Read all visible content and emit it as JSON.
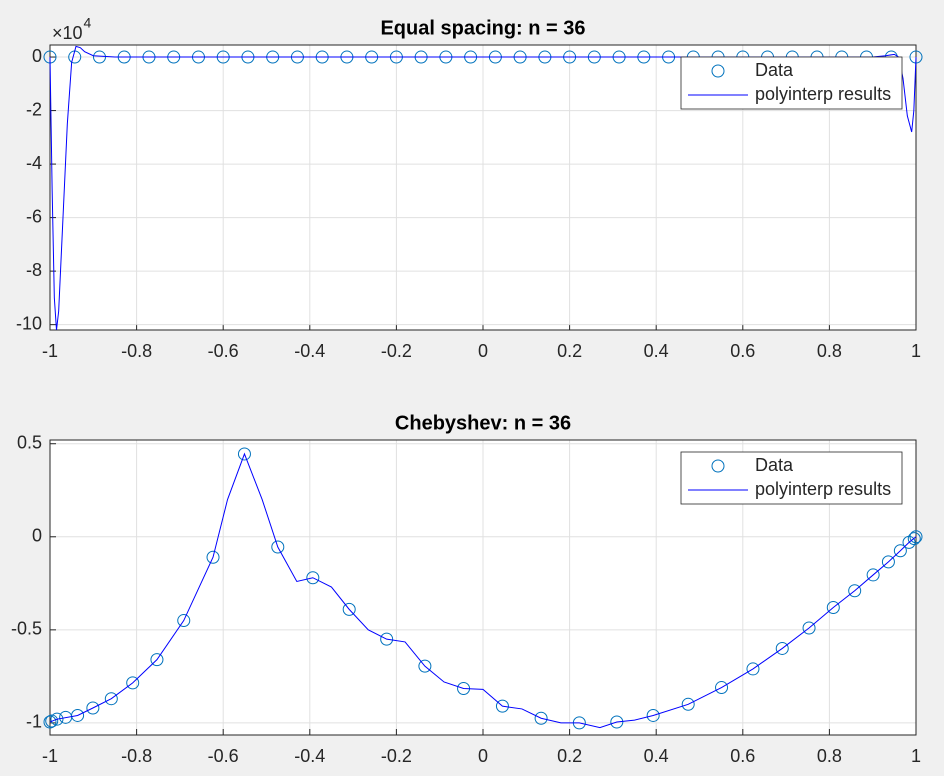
{
  "chart_data": [
    {
      "type": "line",
      "title": "Equal spacing: n = 36",
      "y_multiplier": {
        "base": "×10",
        "exponent": "4"
      },
      "xlim": [
        -1,
        1
      ],
      "xticks": [
        -1,
        -0.8,
        -0.6,
        -0.4,
        -0.2,
        0,
        0.2,
        0.4,
        0.6,
        0.8,
        1
      ],
      "ylim": [
        -10.2,
        0.45
      ],
      "yticks": [
        -10,
        -8,
        -6,
        -4,
        -2,
        0
      ],
      "grid": true,
      "legend": "northeast",
      "series": [
        {
          "name": "Data",
          "color": "#0072bd",
          "mode": "markers",
          "x": [
            -1,
            -0.9429,
            -0.8857,
            -0.8286,
            -0.7714,
            -0.7143,
            -0.6571,
            -0.6,
            -0.5429,
            -0.4857,
            -0.4286,
            -0.3714,
            -0.3143,
            -0.2571,
            -0.2,
            -0.1429,
            -0.0857,
            -0.0286,
            0.0286,
            0.0857,
            0.1429,
            0.2,
            0.2571,
            0.3143,
            0.3714,
            0.4286,
            0.4857,
            0.5429,
            0.6,
            0.6571,
            0.7143,
            0.7714,
            0.8286,
            0.8857,
            0.9429,
            1
          ],
          "values": [
            0,
            0,
            0,
            0,
            0,
            0,
            0,
            0,
            0,
            0,
            0,
            0,
            0,
            0,
            0,
            0,
            0,
            0,
            0,
            0,
            0,
            0,
            0,
            0,
            0,
            0,
            0,
            0,
            0,
            0,
            0,
            0,
            0,
            0,
            0,
            0
          ]
        },
        {
          "name": "polyinterp results",
          "color": "#0000ff",
          "mode": "lines",
          "x": [
            -1,
            -0.995,
            -0.99,
            -0.985,
            -0.98,
            -0.97,
            -0.96,
            -0.95,
            -0.94,
            -0.93,
            -0.92,
            -0.9,
            -0.85,
            0.85,
            0.9,
            0.93,
            0.95,
            0.96,
            0.97,
            0.98,
            0.99,
            0.995,
            1
          ],
          "values": [
            0,
            -5,
            -9,
            -10.2,
            -9.5,
            -6,
            -2.5,
            -0.2,
            0.4,
            0.35,
            0.2,
            0.05,
            0,
            0,
            0,
            0.05,
            0.1,
            0,
            -0.8,
            -2.2,
            -2.8,
            -2,
            0
          ]
        }
      ]
    },
    {
      "type": "line",
      "title": "Chebyshev: n = 36",
      "xlim": [
        -1,
        1
      ],
      "xticks": [
        -1,
        -0.8,
        -0.6,
        -0.4,
        -0.2,
        0,
        0.2,
        0.4,
        0.6,
        0.8,
        1
      ],
      "ylim": [
        -1.065,
        0.52
      ],
      "yticks": [
        -1,
        -0.5,
        0,
        0.5
      ],
      "grid": true,
      "legend": "northeast",
      "series": [
        {
          "name": "Data",
          "color": "#0072bd",
          "mode": "markers",
          "x": [
            -1,
            -0.996,
            -0.9839,
            -0.9639,
            -0.9363,
            -0.901,
            -0.8584,
            -0.809,
            -0.753,
            -0.6911,
            -0.6235,
            -0.5509,
            -0.4739,
            -0.393,
            -0.309,
            -0.2225,
            -0.1342,
            -0.0449,
            0.0449,
            0.1342,
            0.2225,
            0.309,
            0.393,
            0.4739,
            0.5509,
            0.6235,
            0.6911,
            0.753,
            0.809,
            0.8584,
            0.901,
            0.9363,
            0.9639,
            0.9839,
            0.996,
            1
          ],
          "values": [
            -0.995,
            -0.99,
            -0.98,
            -0.97,
            -0.96,
            -0.92,
            -0.87,
            -0.785,
            -0.66,
            -0.45,
            -0.11,
            0.445,
            -0.055,
            -0.22,
            -0.39,
            -0.55,
            -0.695,
            -0.815,
            -0.91,
            -0.975,
            -1.0,
            -0.995,
            -0.96,
            -0.9,
            -0.81,
            -0.71,
            -0.6,
            -0.49,
            -0.38,
            -0.29,
            -0.205,
            -0.135,
            -0.075,
            -0.03,
            -0.01,
            0
          ]
        },
        {
          "name": "polyinterp results",
          "color": "#0000ff",
          "mode": "lines",
          "x": [
            -1,
            -0.9839,
            -0.9363,
            -0.901,
            -0.8584,
            -0.809,
            -0.753,
            -0.6911,
            -0.6235,
            -0.59,
            -0.5509,
            -0.51,
            -0.4739,
            -0.43,
            -0.393,
            -0.35,
            -0.309,
            -0.265,
            -0.2225,
            -0.18,
            -0.1342,
            -0.09,
            -0.0449,
            0,
            0.0449,
            0.09,
            0.1342,
            0.18,
            0.2225,
            0.27,
            0.309,
            0.35,
            0.393,
            0.4739,
            0.5509,
            0.6235,
            0.6911,
            0.753,
            0.809,
            0.8584,
            0.901,
            0.9363,
            0.9639,
            0.9839,
            1
          ],
          "values": [
            -0.995,
            -0.98,
            -0.96,
            -0.92,
            -0.87,
            -0.785,
            -0.66,
            -0.45,
            -0.11,
            0.2,
            0.445,
            0.2,
            -0.055,
            -0.24,
            -0.22,
            -0.27,
            -0.39,
            -0.5,
            -0.55,
            -0.565,
            -0.695,
            -0.78,
            -0.815,
            -0.82,
            -0.91,
            -0.925,
            -0.975,
            -1.0,
            -1.0,
            -1.025,
            -0.995,
            -0.985,
            -0.96,
            -0.9,
            -0.81,
            -0.71,
            -0.6,
            -0.49,
            -0.38,
            -0.29,
            -0.205,
            -0.135,
            -0.075,
            -0.03,
            0
          ]
        }
      ]
    }
  ]
}
